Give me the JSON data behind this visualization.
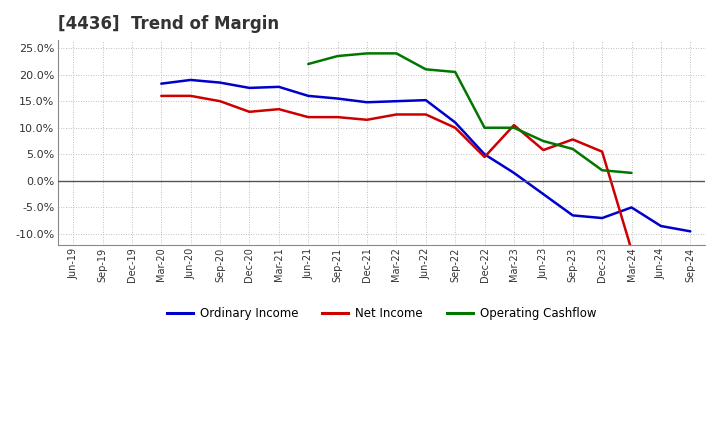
{
  "title": "[4436]  Trend of Margin",
  "x_labels": [
    "Jun-19",
    "Sep-19",
    "Dec-19",
    "Mar-20",
    "Jun-20",
    "Sep-20",
    "Dec-20",
    "Mar-21",
    "Jun-21",
    "Sep-21",
    "Dec-21",
    "Mar-22",
    "Jun-22",
    "Sep-22",
    "Dec-22",
    "Mar-23",
    "Jun-23",
    "Sep-23",
    "Dec-23",
    "Mar-24",
    "Jun-24",
    "Sep-24"
  ],
  "ordinary_income": [
    null,
    null,
    null,
    18.3,
    19.0,
    18.5,
    17.5,
    17.7,
    16.0,
    15.5,
    14.8,
    15.0,
    15.2,
    11.0,
    5.0,
    1.5,
    -2.5,
    -6.5,
    -7.0,
    -5.0,
    -8.5,
    -9.5
  ],
  "net_income": [
    null,
    null,
    null,
    16.0,
    16.0,
    15.0,
    13.0,
    13.5,
    12.0,
    12.0,
    11.5,
    12.5,
    12.5,
    10.0,
    4.5,
    10.5,
    5.8,
    7.8,
    5.5,
    -13.0,
    null,
    null
  ],
  "operating_cashflow": [
    null,
    null,
    null,
    null,
    null,
    null,
    null,
    null,
    22.0,
    23.5,
    24.0,
    24.0,
    21.0,
    20.5,
    10.0,
    10.0,
    7.5,
    6.0,
    2.0,
    1.5,
    null,
    null
  ],
  "ylim": [
    -12,
    26.5
  ],
  "yticks": [
    -10,
    -5,
    0,
    5,
    10,
    15,
    20,
    25
  ],
  "colors": {
    "ordinary_income": "#0000cc",
    "net_income": "#cc0000",
    "operating_cashflow": "#007700",
    "grid": "#aaaaaa",
    "background": "#ffffff",
    "zero_line": "#555555"
  },
  "line_width": 1.8,
  "background_color": "#ffffff",
  "plot_bg_color": "#ffffff",
  "title_fontsize": 12,
  "title_color": "#333333"
}
